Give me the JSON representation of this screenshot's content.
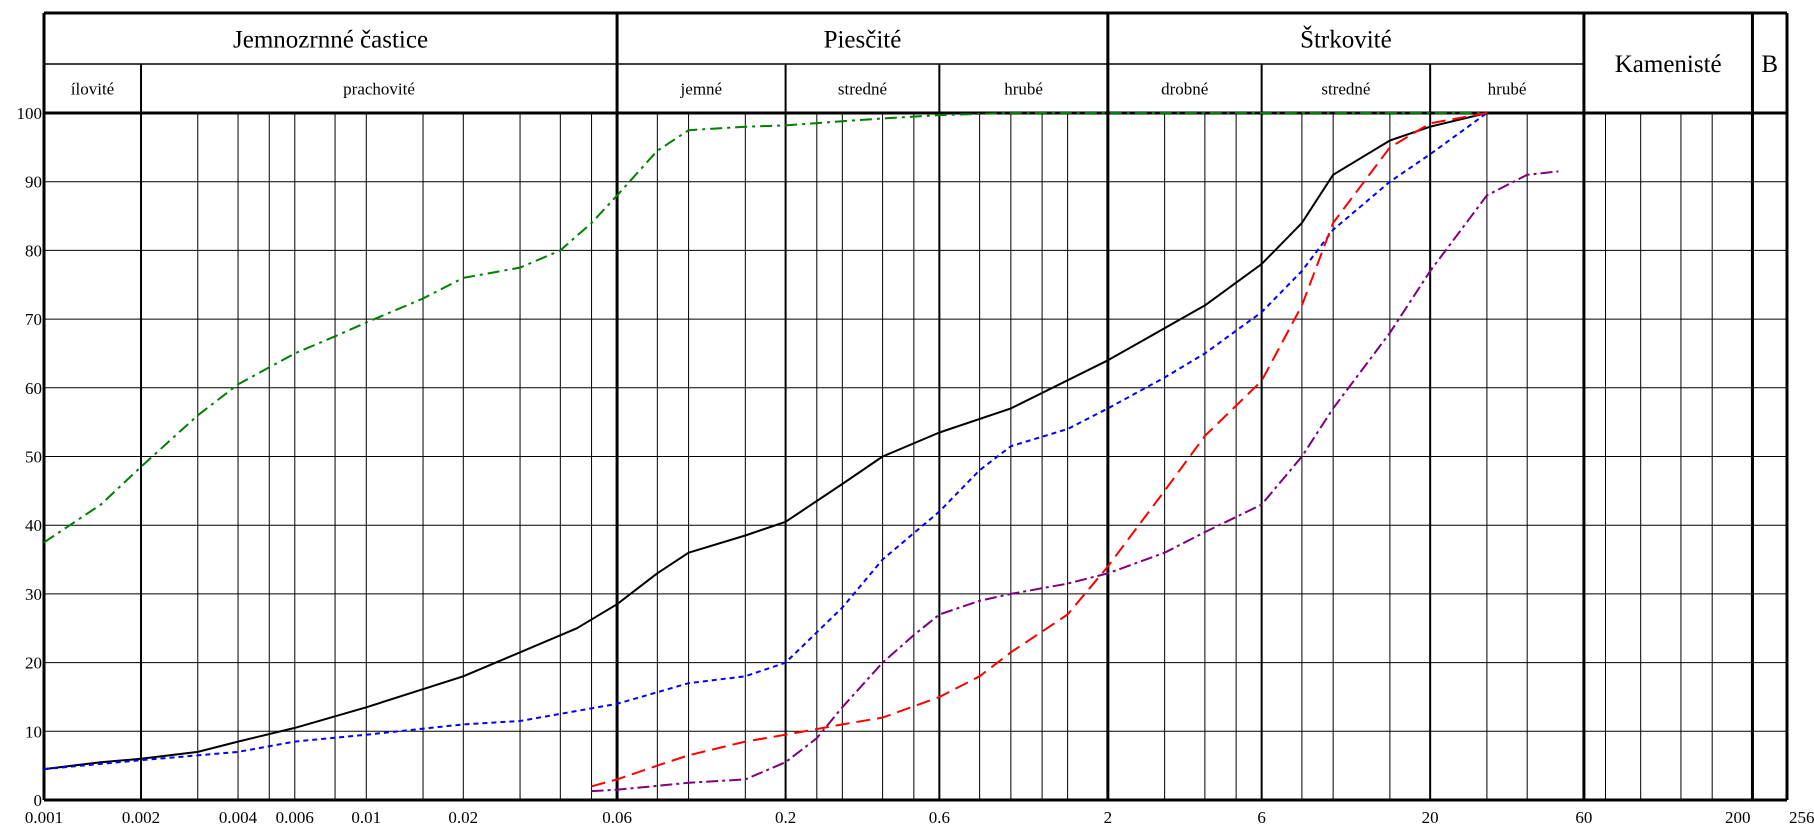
{
  "chart_data": {
    "type": "line",
    "x_scale": "log",
    "xlim": [
      0.001,
      256
    ],
    "ylim": [
      0,
      100
    ],
    "grid": true,
    "x_ticks": [
      {
        "v": 0.001,
        "label": "0.001"
      },
      {
        "v": 0.002,
        "label": "0.002"
      },
      {
        "v": 0.004,
        "label": "0.004"
      },
      {
        "v": 0.006,
        "label": "0.006"
      },
      {
        "v": 0.01,
        "label": "0.01"
      },
      {
        "v": 0.02,
        "label": "0.02"
      },
      {
        "v": 0.06,
        "label": "0.06"
      },
      {
        "v": 0.2,
        "label": "0.2"
      },
      {
        "v": 0.6,
        "label": "0.6"
      },
      {
        "v": 2,
        "label": "2"
      },
      {
        "v": 6,
        "label": "6"
      },
      {
        "v": 20,
        "label": "20"
      },
      {
        "v": 60,
        "label": "60"
      },
      {
        "v": 200,
        "label": "200"
      },
      {
        "v": 256,
        "label": "256"
      }
    ],
    "y_ticks": [
      0,
      10,
      20,
      30,
      40,
      50,
      60,
      70,
      80,
      90,
      100
    ],
    "x_gridlines": [
      0.001,
      0.002,
      0.003,
      0.004,
      0.005,
      0.006,
      0.008,
      0.01,
      0.015,
      0.02,
      0.03,
      0.04,
      0.05,
      0.06,
      0.08,
      0.1,
      0.15,
      0.2,
      0.25,
      0.3,
      0.4,
      0.5,
      0.6,
      0.8,
      1,
      1.25,
      1.5,
      2,
      3,
      4,
      5,
      6,
      8,
      10,
      15,
      20,
      30,
      40,
      60,
      70,
      90,
      120,
      150,
      200,
      256
    ],
    "x_major_lines": [
      0.002,
      0.2,
      0.6,
      6,
      20
    ],
    "x_section_lines": [
      0.001,
      0.06,
      2,
      60,
      200,
      256
    ],
    "header": {
      "groups": [
        {
          "label": "Jemnozrnné častice",
          "from": 0.001,
          "to": 0.06
        },
        {
          "label": "Piesčité",
          "from": 0.06,
          "to": 2
        },
        {
          "label": "Štrkovité",
          "from": 2,
          "to": 60
        },
        {
          "label": "Kamenisté",
          "from": 60,
          "to": 200
        },
        {
          "label": "B",
          "from": 200,
          "to": 256
        }
      ],
      "subgroups": [
        {
          "label": "ílovité",
          "from": 0.001,
          "to": 0.002
        },
        {
          "label": "prachovité",
          "from": 0.002,
          "to": 0.06
        },
        {
          "label": "jemné",
          "from": 0.06,
          "to": 0.2
        },
        {
          "label": "stredné",
          "from": 0.2,
          "to": 0.6
        },
        {
          "label": "hrubé",
          "from": 0.6,
          "to": 2
        },
        {
          "label": "drobné",
          "from": 2,
          "to": 6
        },
        {
          "label": "stredné",
          "from": 6,
          "to": 20
        },
        {
          "label": "hrubé",
          "from": 20,
          "to": 60
        }
      ]
    },
    "series": [
      {
        "color": "#008000",
        "dash": "12 5 3 5",
        "points": [
          [
            0.001,
            37.5
          ],
          [
            0.0015,
            43
          ],
          [
            0.002,
            48.5
          ],
          [
            0.003,
            56
          ],
          [
            0.004,
            60.5
          ],
          [
            0.006,
            65
          ],
          [
            0.008,
            67.5
          ],
          [
            0.01,
            69.5
          ],
          [
            0.015,
            73
          ],
          [
            0.02,
            76
          ],
          [
            0.03,
            77.5
          ],
          [
            0.04,
            80
          ],
          [
            0.05,
            84
          ],
          [
            0.06,
            88
          ],
          [
            0.08,
            94.5
          ],
          [
            0.1,
            97.5
          ],
          [
            0.15,
            98
          ],
          [
            0.2,
            98.2
          ],
          [
            0.3,
            98.8
          ],
          [
            0.4,
            99.2
          ],
          [
            0.6,
            99.7
          ],
          [
            1,
            100
          ],
          [
            2,
            100
          ],
          [
            6,
            100
          ],
          [
            30,
            100
          ]
        ]
      },
      {
        "color": "#000000",
        "dash": "",
        "points": [
          [
            0.001,
            4.5
          ],
          [
            0.0015,
            5.5
          ],
          [
            0.002,
            6
          ],
          [
            0.003,
            7
          ],
          [
            0.004,
            8.5
          ],
          [
            0.006,
            10.5
          ],
          [
            0.01,
            13.5
          ],
          [
            0.02,
            18
          ],
          [
            0.03,
            21.5
          ],
          [
            0.045,
            25
          ],
          [
            0.06,
            28.5
          ],
          [
            0.08,
            33
          ],
          [
            0.1,
            36
          ],
          [
            0.15,
            38.5
          ],
          [
            0.2,
            40.5
          ],
          [
            0.3,
            46
          ],
          [
            0.4,
            50
          ],
          [
            0.6,
            53.5
          ],
          [
            1,
            57
          ],
          [
            2,
            64
          ],
          [
            4,
            72
          ],
          [
            6,
            78
          ],
          [
            8,
            84
          ],
          [
            10,
            91
          ],
          [
            15,
            96
          ],
          [
            20,
            98
          ],
          [
            30,
            100
          ]
        ]
      },
      {
        "color": "#0000ff",
        "dash": "5 4",
        "points": [
          [
            0.001,
            4.5
          ],
          [
            0.002,
            5.8
          ],
          [
            0.004,
            7
          ],
          [
            0.006,
            8.5
          ],
          [
            0.01,
            9.5
          ],
          [
            0.02,
            11
          ],
          [
            0.03,
            11.5
          ],
          [
            0.06,
            14
          ],
          [
            0.1,
            17
          ],
          [
            0.15,
            18
          ],
          [
            0.2,
            20
          ],
          [
            0.3,
            28
          ],
          [
            0.4,
            35
          ],
          [
            0.6,
            42
          ],
          [
            0.8,
            48
          ],
          [
            1,
            51.5
          ],
          [
            1.5,
            54
          ],
          [
            2,
            57
          ],
          [
            3,
            61.5
          ],
          [
            4,
            65
          ],
          [
            6,
            71
          ],
          [
            8,
            77
          ],
          [
            10,
            83
          ],
          [
            15,
            90
          ],
          [
            20,
            94
          ],
          [
            30,
            100
          ]
        ]
      },
      {
        "color": "#ff0000",
        "dash": "14 7",
        "points": [
          [
            0.05,
            2
          ],
          [
            0.06,
            3
          ],
          [
            0.08,
            5
          ],
          [
            0.1,
            6.5
          ],
          [
            0.15,
            8.5
          ],
          [
            0.2,
            9.5
          ],
          [
            0.3,
            11
          ],
          [
            0.4,
            12
          ],
          [
            0.6,
            15
          ],
          [
            0.8,
            18
          ],
          [
            1,
            21.5
          ],
          [
            1.5,
            27
          ],
          [
            2,
            34
          ],
          [
            3,
            45
          ],
          [
            4,
            53
          ],
          [
            6,
            61
          ],
          [
            8,
            72
          ],
          [
            10,
            84
          ],
          [
            15,
            95
          ],
          [
            20,
            98.5
          ],
          [
            30,
            100
          ]
        ]
      },
      {
        "color": "#800080",
        "dash": "12 4 3 4",
        "points": [
          [
            0.05,
            1.3
          ],
          [
            0.06,
            1.5
          ],
          [
            0.1,
            2.5
          ],
          [
            0.15,
            3
          ],
          [
            0.2,
            5.5
          ],
          [
            0.25,
            9
          ],
          [
            0.3,
            13.5
          ],
          [
            0.4,
            20
          ],
          [
            0.5,
            24
          ],
          [
            0.6,
            27
          ],
          [
            0.8,
            29
          ],
          [
            1,
            30
          ],
          [
            1.5,
            31.5
          ],
          [
            2,
            33
          ],
          [
            3,
            36
          ],
          [
            4,
            39
          ],
          [
            6,
            43
          ],
          [
            8,
            50
          ],
          [
            10,
            57
          ],
          [
            15,
            68
          ],
          [
            20,
            77
          ],
          [
            30,
            88
          ],
          [
            40,
            91
          ],
          [
            50,
            91.5
          ]
        ]
      }
    ]
  }
}
